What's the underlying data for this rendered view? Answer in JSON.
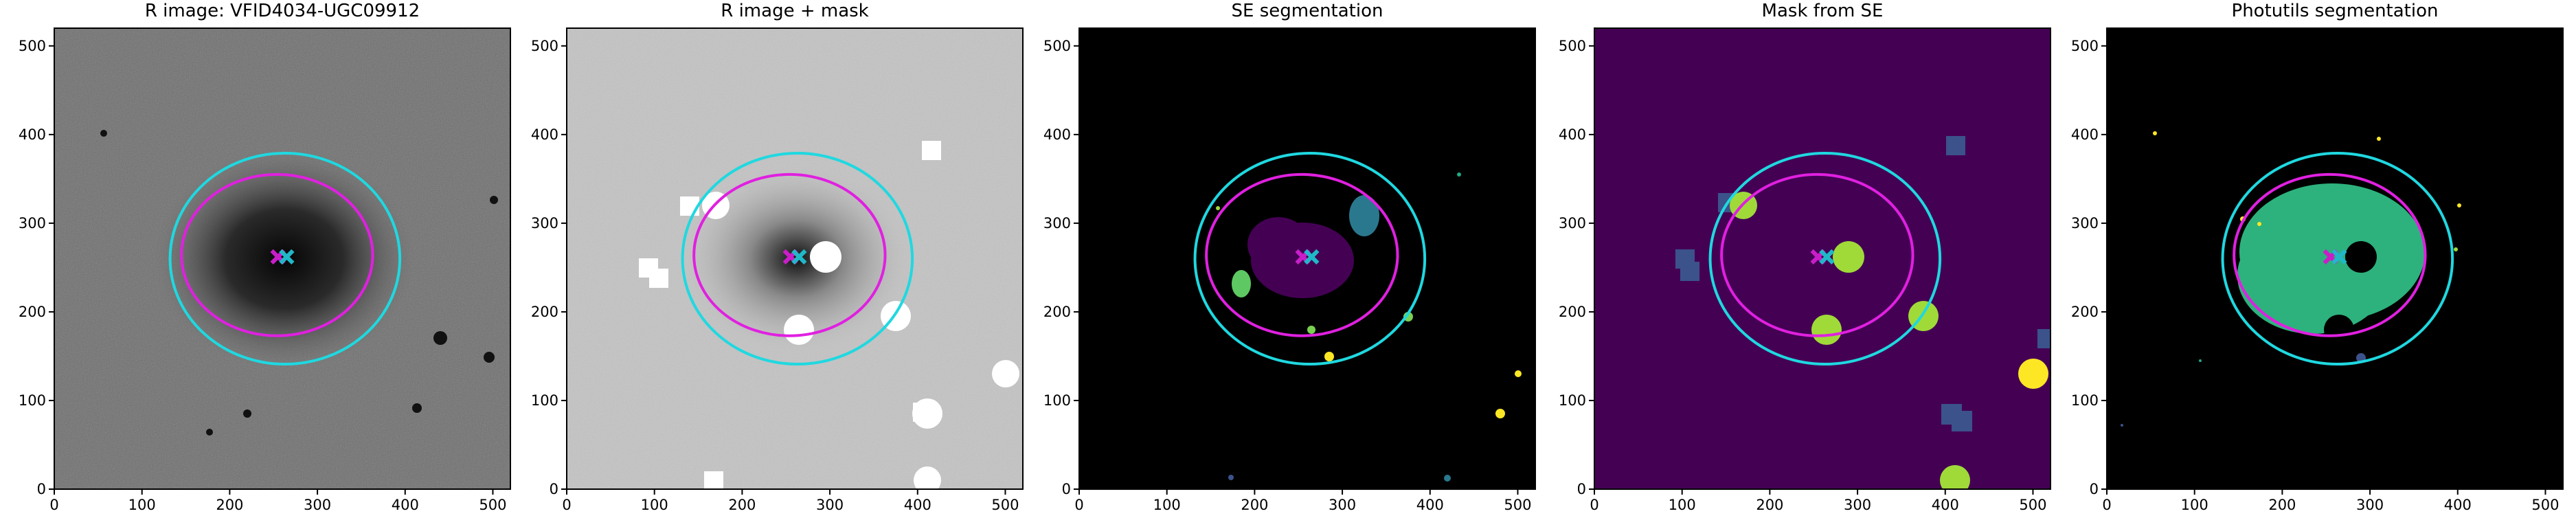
{
  "chart_data": [
    {
      "type": "image",
      "title": "R image: VFID4034-UGC09912",
      "background": "#6e6e6e",
      "xlim": [
        0,
        520
      ],
      "ylim": [
        0,
        520
      ],
      "xticks": [
        0,
        100,
        200,
        300,
        400,
        500
      ],
      "yticks": [
        0,
        100,
        200,
        300,
        400,
        500
      ],
      "ellipses": [
        {
          "x": 263,
          "y": 260,
          "rx": 131,
          "ry": 119,
          "color": "#1fd8e0"
        },
        {
          "x": 254,
          "y": 264,
          "rx": 109,
          "ry": 91,
          "color": "#e020e0"
        }
      ],
      "markers": [
        {
          "x": 255,
          "y": 262,
          "color": "#c81ec8"
        },
        {
          "x": 265,
          "y": 262,
          "color": "#20b8c8"
        }
      ]
    },
    {
      "type": "image",
      "title": "R image + mask",
      "background": "#c4c4c4",
      "xlim": [
        0,
        520
      ],
      "ylim": [
        0,
        520
      ],
      "xticks": [
        0,
        100,
        200,
        300,
        400,
        500
      ],
      "yticks": [
        0,
        100,
        200,
        300,
        400,
        500
      ],
      "ellipses": [
        {
          "x": 263,
          "y": 260,
          "rx": 131,
          "ry": 119,
          "color": "#1fd8e0"
        },
        {
          "x": 254,
          "y": 264,
          "rx": 109,
          "ry": 91,
          "color": "#e020e0"
        }
      ],
      "markers": [
        {
          "x": 255,
          "y": 262,
          "color": "#c81ec8"
        },
        {
          "x": 265,
          "y": 262,
          "color": "#20b8c8"
        }
      ]
    },
    {
      "type": "image",
      "title": "SE segmentation",
      "background": "#000000",
      "xlim": [
        0,
        520
      ],
      "ylim": [
        0,
        520
      ],
      "xticks": [
        0,
        100,
        200,
        300,
        400,
        500
      ],
      "yticks": [
        0,
        100,
        200,
        300,
        400,
        500
      ],
      "ellipses": [
        {
          "x": 263,
          "y": 260,
          "rx": 131,
          "ry": 119,
          "color": "#1fd8e0"
        },
        {
          "x": 254,
          "y": 264,
          "rx": 109,
          "ry": 91,
          "color": "#e020e0"
        }
      ],
      "markers": [
        {
          "x": 255,
          "y": 262,
          "color": "#c81ec8"
        },
        {
          "x": 265,
          "y": 262,
          "color": "#20b8c8"
        }
      ]
    },
    {
      "type": "image",
      "title": "Mask from SE",
      "background": "#440154",
      "xlim": [
        0,
        520
      ],
      "ylim": [
        0,
        520
      ],
      "xticks": [
        0,
        100,
        200,
        300,
        400,
        500
      ],
      "yticks": [
        0,
        100,
        200,
        300,
        400,
        500
      ],
      "ellipses": [
        {
          "x": 263,
          "y": 260,
          "rx": 131,
          "ry": 119,
          "color": "#1fd8e0"
        },
        {
          "x": 254,
          "y": 264,
          "rx": 109,
          "ry": 91,
          "color": "#e020e0"
        }
      ],
      "markers": [
        {
          "x": 255,
          "y": 262,
          "color": "#c81ec8"
        },
        {
          "x": 265,
          "y": 262,
          "color": "#20b8c8"
        }
      ]
    },
    {
      "type": "image",
      "title": "Photutils segmentation",
      "background": "#000000",
      "xlim": [
        0,
        520
      ],
      "ylim": [
        0,
        520
      ],
      "xticks": [
        0,
        100,
        200,
        300,
        400,
        500
      ],
      "yticks": [
        0,
        100,
        200,
        300,
        400,
        500
      ],
      "ellipses": [
        {
          "x": 263,
          "y": 260,
          "rx": 131,
          "ry": 119,
          "color": "#1fd8e0"
        },
        {
          "x": 254,
          "y": 264,
          "rx": 109,
          "ry": 91,
          "color": "#e020e0"
        }
      ],
      "markers": [
        {
          "x": 255,
          "y": 262,
          "color": "#c81ec8"
        },
        {
          "x": 265,
          "y": 262,
          "color": "#20b8c8"
        }
      ]
    }
  ]
}
